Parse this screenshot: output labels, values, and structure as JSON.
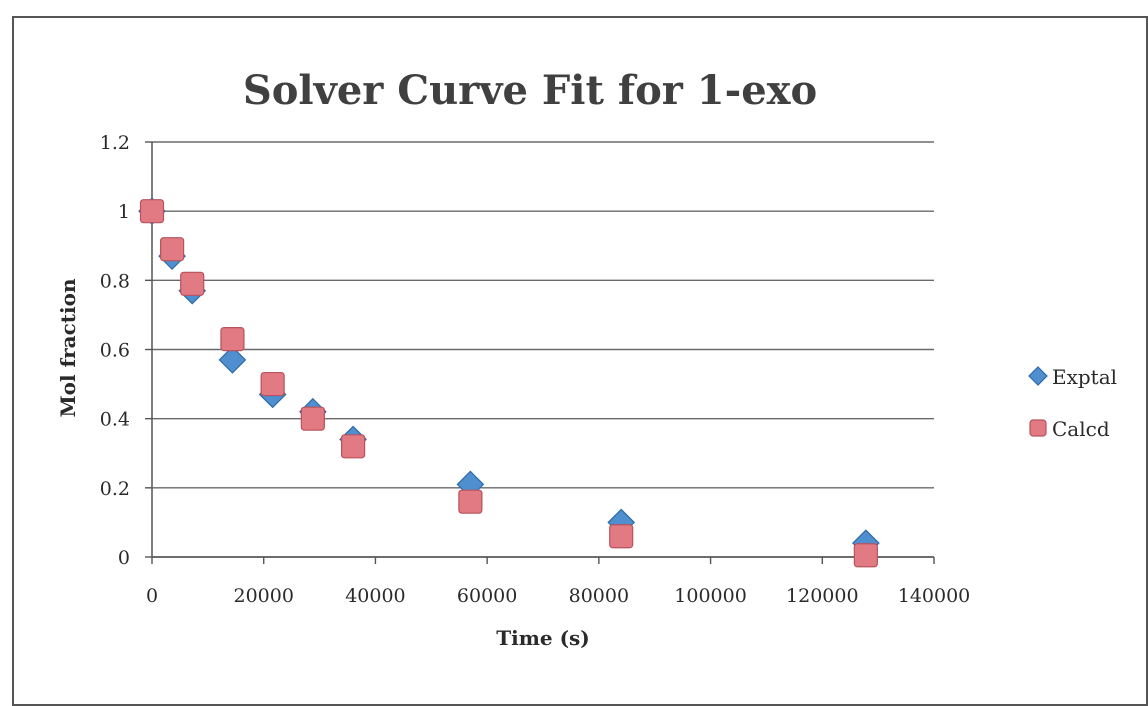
{
  "chart_data": {
    "type": "scatter",
    "title": "Solver Curve Fit for 1-exo",
    "xlabel": "Time (s)",
    "ylabel": "Mol fraction",
    "xlim": [
      0,
      140000
    ],
    "ylim": [
      0,
      1.2
    ],
    "x_ticks": [
      "0",
      "20000",
      "40000",
      "60000",
      "80000",
      "100000",
      "120000",
      "140000"
    ],
    "y_ticks": [
      "0",
      "0.2",
      "0.4",
      "0.6",
      "0.8",
      "1",
      "1.2"
    ],
    "grid": true,
    "legend_position": "right",
    "series": [
      {
        "name": "Exptal",
        "marker": "diamond",
        "color": "#4f8fd0",
        "points": [
          [
            0,
            1.0
          ],
          [
            3600,
            0.87
          ],
          [
            7200,
            0.77
          ],
          [
            14400,
            0.57
          ],
          [
            21600,
            0.47
          ],
          [
            28800,
            0.42
          ],
          [
            36000,
            0.34
          ],
          [
            57000,
            0.21
          ],
          [
            84000,
            0.1
          ],
          [
            127800,
            0.04
          ]
        ]
      },
      {
        "name": "Calcd",
        "marker": "square",
        "color": "#e27a83",
        "points": [
          [
            0,
            1.0
          ],
          [
            3600,
            0.89
          ],
          [
            7200,
            0.79
          ],
          [
            14400,
            0.63
          ],
          [
            21600,
            0.5
          ],
          [
            28800,
            0.4
          ],
          [
            36000,
            0.32
          ],
          [
            57000,
            0.16
          ],
          [
            84000,
            0.06
          ],
          [
            127800,
            0.005
          ]
        ]
      }
    ]
  }
}
